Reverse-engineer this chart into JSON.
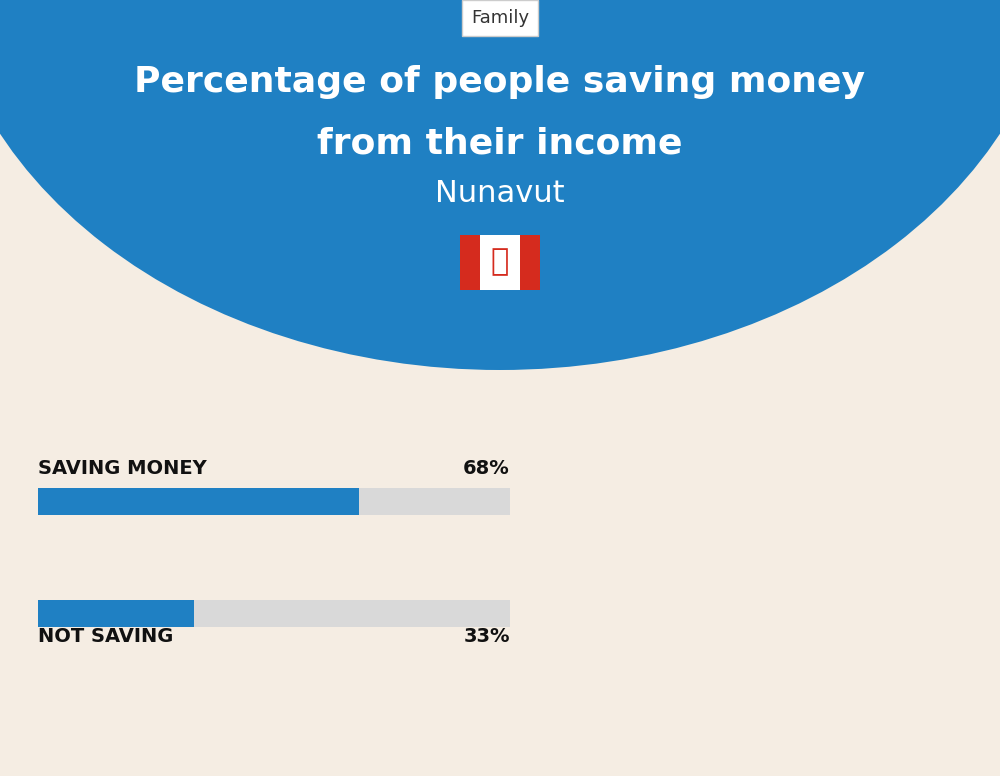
{
  "title_line1": "Percentage of people saving money",
  "title_line2": "from their income",
  "subtitle": "Nunavut",
  "tab_label": "Family",
  "background_color": "#f5ede3",
  "blue_color": "#1f80c3",
  "bar_bg_color": "#d9d9d9",
  "bar1_label": "SAVING MONEY",
  "bar1_value": 68,
  "bar1_pct": "68%",
  "bar2_label": "NOT SAVING",
  "bar2_value": 33,
  "bar2_pct": "33%",
  "bar_max": 100,
  "white_color": "#ffffff",
  "black_color": "#111111",
  "title_color": "#ffffff",
  "subtitle_color": "#ffffff",
  "tab_bg": "#ffffff",
  "blue_circle_color": "#1f80c3",
  "tab_border_color": "#cccccc",
  "fig_width": 10.0,
  "fig_height": 7.76
}
